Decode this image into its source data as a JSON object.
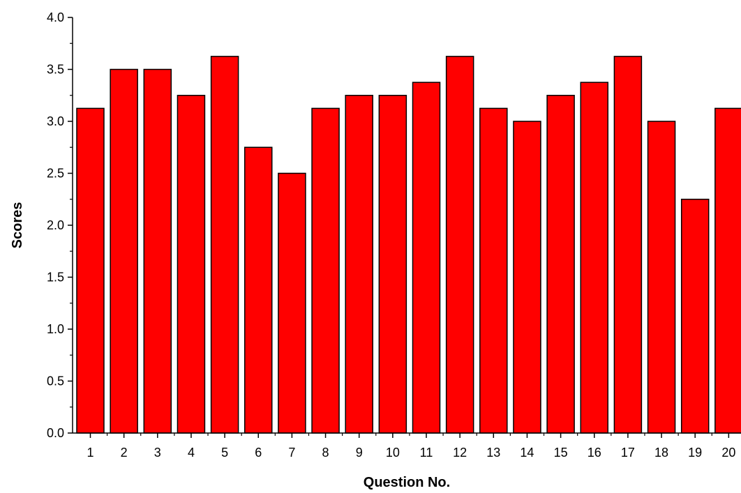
{
  "chart_data": {
    "type": "bar",
    "title": "",
    "xlabel": "Question No.",
    "ylabel": "Scores",
    "categories": [
      "1",
      "2",
      "3",
      "4",
      "5",
      "6",
      "7",
      "8",
      "9",
      "10",
      "11",
      "12",
      "13",
      "14",
      "15",
      "16",
      "17",
      "18",
      "19",
      "20"
    ],
    "values": [
      3.125,
      3.5,
      3.5,
      3.25,
      3.625,
      2.75,
      2.5,
      3.125,
      3.25,
      3.25,
      3.375,
      3.625,
      3.125,
      3.0,
      3.25,
      3.375,
      3.625,
      3.0,
      2.25,
      3.125
    ],
    "ylim": [
      0,
      4.0
    ],
    "yticks": [
      "0.0",
      "0.5",
      "1.0",
      "1.5",
      "2.0",
      "2.5",
      "3.0",
      "3.5",
      "4.0"
    ],
    "grid": false,
    "bar_color": "#ff0000",
    "bar_edge_color": "#000000"
  }
}
